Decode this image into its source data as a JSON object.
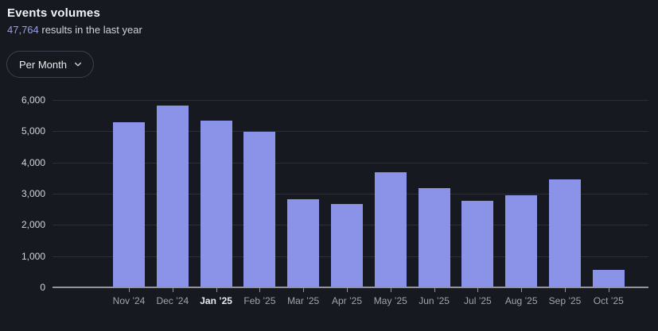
{
  "header": {
    "title": "Events volumes",
    "results_count": "47,764",
    "results_suffix": " results in the last year"
  },
  "controls": {
    "interval_label": "Per Month",
    "chevron_icon": "chevron-down"
  },
  "colors": {
    "background": "#171921",
    "bar": "#8a93e8",
    "accent_text": "#979ee9",
    "gridline": "#2c2e38",
    "axis_line": "#94949c",
    "y_label": "#d4d5db",
    "x_label": "#a2a4ad",
    "x_label_emphasis": "#e9eaee",
    "title_text": "#f2f3f5",
    "subtitle_text": "#d2d3d9"
  },
  "chart_data": {
    "type": "bar",
    "title": "Events volumes",
    "categories": [
      "Nov ’24",
      "Dec ’24",
      "Jan ’25",
      "Feb ’25",
      "Mar ’25",
      "Apr ’25",
      "May ’25",
      "Jun ’25",
      "Jul ’25",
      "Aug ’25",
      "Sep ’25",
      "Oct ’25"
    ],
    "values": [
      5260,
      5800,
      5320,
      4950,
      2790,
      2650,
      3660,
      3140,
      2750,
      2920,
      3440,
      540
    ],
    "emphasized_category": "Jan ’25",
    "xlabel": "",
    "ylabel": "",
    "ylim": [
      0,
      6000
    ],
    "yticks": [
      0,
      1000,
      2000,
      3000,
      4000,
      5000,
      6000
    ],
    "ytick_labels": [
      "0",
      "1,000",
      "2,000",
      "3,000",
      "4,000",
      "5,000",
      "6,000"
    ],
    "grid": true,
    "legend": false
  }
}
